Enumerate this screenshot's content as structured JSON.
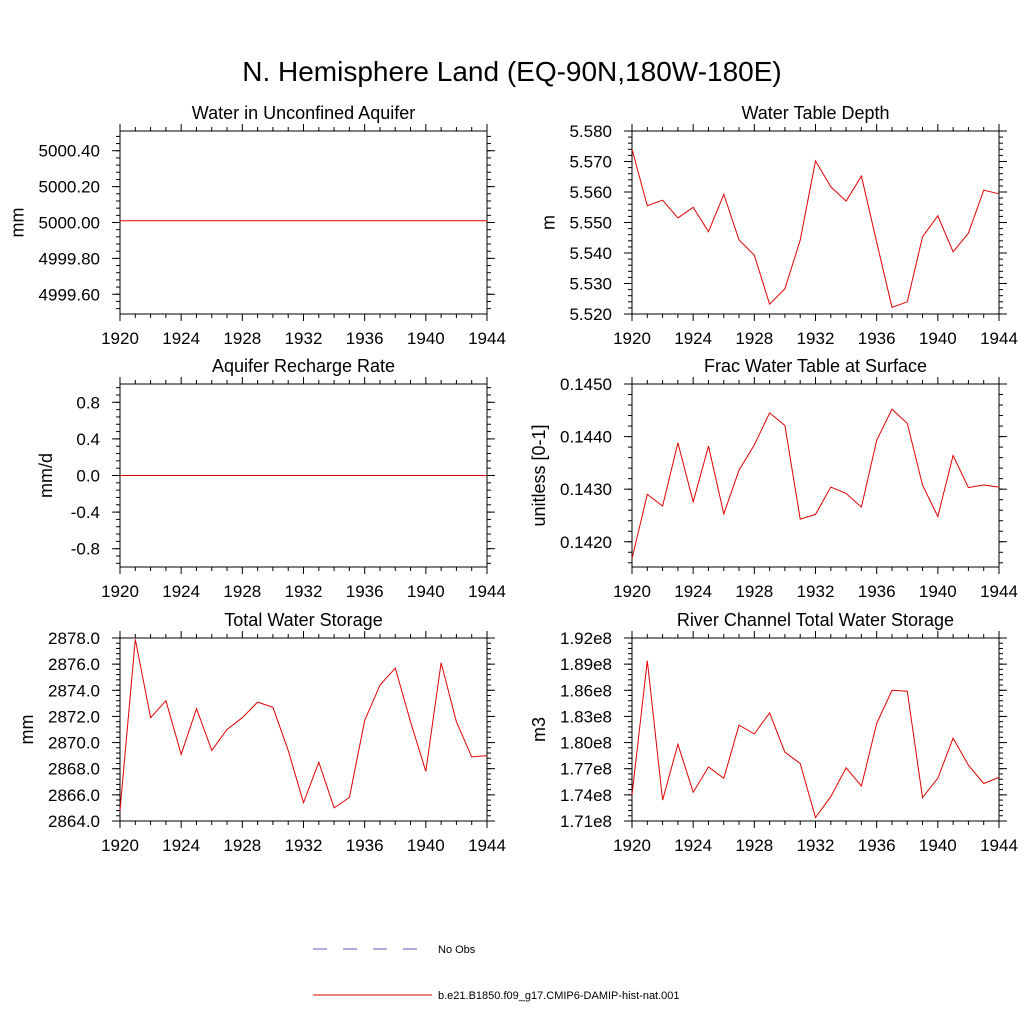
{
  "title": "N. Hemisphere Land (EQ-90N,180W-180E)",
  "legend": {
    "items": [
      {
        "label": "No Obs",
        "color": "#5a5ab4",
        "dash": true
      },
      {
        "label": "b.e21.B1850.f09_g17.CMIP6-DAMIP-hist-nat.001",
        "color": "#e00000",
        "dash": false
      }
    ]
  },
  "chart_data": [
    {
      "type": "line",
      "title": "Water in Unconfined Aquifer",
      "ylabel": "mm",
      "xlim": [
        1920,
        1944
      ],
      "ylim": [
        4999.49,
        5000.51
      ],
      "xticks": [
        "1920",
        "1924",
        "1928",
        "1932",
        "1936",
        "1940",
        "1944"
      ],
      "yticks": [
        {
          "v": 5000.4,
          "t": "5000.40"
        },
        {
          "v": 5000.2,
          "t": "5000.20"
        },
        {
          "v": 5000.0,
          "t": "5000.00"
        },
        {
          "v": 4999.8,
          "t": "4999.80"
        },
        {
          "v": 4999.6,
          "t": "4999.60"
        }
      ],
      "x": [
        1920,
        1921,
        1922,
        1923,
        1924,
        1925,
        1926,
        1927,
        1928,
        1929,
        1930,
        1931,
        1932,
        1933,
        1934,
        1935,
        1936,
        1937,
        1938,
        1939,
        1940,
        1941,
        1942,
        1943,
        1944
      ],
      "series": [
        {
          "values": [
            5000.01,
            5000.01,
            5000.01,
            5000.01,
            5000.01,
            5000.01,
            5000.01,
            5000.01,
            5000.01,
            5000.01,
            5000.01,
            5000.01,
            5000.01,
            5000.01,
            5000.01,
            5000.01,
            5000.01,
            5000.01,
            5000.01,
            5000.01,
            5000.01,
            5000.01,
            5000.01,
            5000.01,
            5000.01
          ],
          "color": "#e00000"
        }
      ]
    },
    {
      "type": "line",
      "title": "Water Table Depth",
      "ylabel": "m",
      "xlim": [
        1920,
        1944
      ],
      "ylim": [
        5.52,
        5.58
      ],
      "xticks": [
        "1920",
        "1924",
        "1928",
        "1932",
        "1936",
        "1940",
        "1944"
      ],
      "yticks": [
        {
          "v": 5.58,
          "t": "5.580"
        },
        {
          "v": 5.57,
          "t": "5.570"
        },
        {
          "v": 5.56,
          "t": "5.560"
        },
        {
          "v": 5.55,
          "t": "5.550"
        },
        {
          "v": 5.54,
          "t": "5.540"
        },
        {
          "v": 5.53,
          "t": "5.530"
        },
        {
          "v": 5.52,
          "t": "5.520"
        }
      ],
      "x": [
        1920,
        1921,
        1922,
        1923,
        1924,
        1925,
        1926,
        1927,
        1928,
        1929,
        1930,
        1931,
        1932,
        1933,
        1934,
        1935,
        1936,
        1937,
        1938,
        1939,
        1940,
        1941,
        1942,
        1943,
        1944
      ],
      "series": [
        {
          "values": [
            5.574,
            5.5555,
            5.5573,
            5.5515,
            5.555,
            5.547,
            5.5592,
            5.5443,
            5.5393,
            5.5232,
            5.5283,
            5.5442,
            5.5702,
            5.5617,
            5.557,
            5.5652,
            5.5435,
            5.5222,
            5.524,
            5.5453,
            5.5522,
            5.5404,
            5.5465,
            5.5606,
            5.5594
          ],
          "color": "#e00000"
        }
      ]
    },
    {
      "type": "line",
      "title": "Aquifer Recharge Rate",
      "ylabel": "mm/d",
      "xlim": [
        1920,
        1944
      ],
      "ylim": [
        -1.0,
        1.0
      ],
      "xticks": [
        "1920",
        "1924",
        "1928",
        "1932",
        "1936",
        "1940",
        "1944"
      ],
      "yticks": [
        {
          "v": 0.8,
          "t": "0.8"
        },
        {
          "v": 0.4,
          "t": "0.4"
        },
        {
          "v": 0.0,
          "t": "0.0"
        },
        {
          "v": -0.4,
          "t": "-0.4"
        },
        {
          "v": -0.8,
          "t": "-0.8"
        }
      ],
      "x": [
        1920,
        1921,
        1922,
        1923,
        1924,
        1925,
        1926,
        1927,
        1928,
        1929,
        1930,
        1931,
        1932,
        1933,
        1934,
        1935,
        1936,
        1937,
        1938,
        1939,
        1940,
        1941,
        1942,
        1943,
        1944
      ],
      "series": [
        {
          "values": [
            0,
            0,
            0,
            0,
            0,
            0,
            0,
            0,
            0,
            0,
            0,
            0,
            0,
            0,
            0,
            0,
            0,
            0,
            0,
            0,
            0,
            0,
            0,
            0,
            0
          ],
          "color": "#e00000"
        }
      ]
    },
    {
      "type": "line",
      "title": "Frac Water Table at Surface",
      "ylabel": "unitless [0-1]",
      "xlim": [
        1920,
        1944
      ],
      "ylim": [
        0.14152,
        0.145
      ],
      "xticks": [
        "1920",
        "1924",
        "1928",
        "1932",
        "1936",
        "1940",
        "1944"
      ],
      "yticks": [
        {
          "v": 0.145,
          "t": "0.1450"
        },
        {
          "v": 0.144,
          "t": "0.1440"
        },
        {
          "v": 0.143,
          "t": "0.1430"
        },
        {
          "v": 0.142,
          "t": "0.1420"
        }
      ],
      "x": [
        1920,
        1921,
        1922,
        1923,
        1924,
        1925,
        1926,
        1927,
        1928,
        1929,
        1930,
        1931,
        1932,
        1933,
        1934,
        1935,
        1936,
        1937,
        1938,
        1939,
        1940,
        1941,
        1942,
        1943,
        1944
      ],
      "series": [
        {
          "values": [
            0.14168,
            0.1429,
            0.14268,
            0.14388,
            0.14276,
            0.14382,
            0.14253,
            0.14336,
            0.14384,
            0.14445,
            0.14421,
            0.14243,
            0.14252,
            0.14304,
            0.14292,
            0.14266,
            0.14393,
            0.14452,
            0.14425,
            0.14308,
            0.14248,
            0.14364,
            0.14303,
            0.14308,
            0.14304
          ],
          "color": "#e00000"
        }
      ]
    },
    {
      "type": "line",
      "title": "Total Water Storage",
      "ylabel": "mm",
      "xlim": [
        1920,
        1944
      ],
      "ylim": [
        2864.0,
        2878.0
      ],
      "xticks": [
        "1920",
        "1924",
        "1928",
        "1932",
        "1936",
        "1940",
        "1944"
      ],
      "yticks": [
        {
          "v": 2878.0,
          "t": "2878.0"
        },
        {
          "v": 2876.0,
          "t": "2876.0"
        },
        {
          "v": 2874.0,
          "t": "2874.0"
        },
        {
          "v": 2872.0,
          "t": "2872.0"
        },
        {
          "v": 2870.0,
          "t": "2870.0"
        },
        {
          "v": 2868.0,
          "t": "2868.0"
        },
        {
          "v": 2866.0,
          "t": "2866.0"
        },
        {
          "v": 2864.0,
          "t": "2864.0"
        }
      ],
      "x": [
        1920,
        1921,
        1922,
        1923,
        1924,
        1925,
        1926,
        1927,
        1928,
        1929,
        1930,
        1931,
        1932,
        1933,
        1934,
        1935,
        1936,
        1937,
        1938,
        1939,
        1940,
        1941,
        1942,
        1943,
        1944
      ],
      "series": [
        {
          "values": [
            2864.8,
            2877.9,
            2871.9,
            2873.2,
            2869.1,
            2872.6,
            2869.4,
            2871.0,
            2871.9,
            2873.1,
            2872.7,
            2869.4,
            2865.4,
            2868.5,
            2865.0,
            2865.8,
            2871.7,
            2874.4,
            2875.7,
            2871.6,
            2867.8,
            2876.1,
            2871.6,
            2868.9,
            2869.0
          ],
          "color": "#e00000"
        }
      ]
    },
    {
      "type": "line",
      "title": "River Channel Total Water Storage",
      "ylabel": "m3",
      "xlim": [
        1920,
        1944
      ],
      "ylim": [
        171000000.0,
        192000000.0
      ],
      "xticks": [
        "1920",
        "1924",
        "1928",
        "1932",
        "1936",
        "1940",
        "1944"
      ],
      "yticks": [
        {
          "v": 192000000.0,
          "t": "1.92e8"
        },
        {
          "v": 189000000.0,
          "t": "1.89e8"
        },
        {
          "v": 186000000.0,
          "t": "1.86e8"
        },
        {
          "v": 183000000.0,
          "t": "1.83e8"
        },
        {
          "v": 180000000.0,
          "t": "1.80e8"
        },
        {
          "v": 177000000.0,
          "t": "1.77e8"
        },
        {
          "v": 174000000.0,
          "t": "1.74e8"
        },
        {
          "v": 171000000.0,
          "t": "1.71e8"
        }
      ],
      "x": [
        1920,
        1921,
        1922,
        1923,
        1924,
        1925,
        1926,
        1927,
        1928,
        1929,
        1930,
        1931,
        1932,
        1933,
        1934,
        1935,
        1936,
        1937,
        1938,
        1939,
        1940,
        1941,
        1942,
        1943,
        1944
      ],
      "series": [
        {
          "values": [
            174000000.0,
            189400000.0,
            173400000.0,
            179800000.0,
            174300000.0,
            177200000.0,
            175900000.0,
            182000000.0,
            181000000.0,
            183400000.0,
            178900000.0,
            177600000.0,
            171400000.0,
            173800000.0,
            177100000.0,
            175000000.0,
            182200000.0,
            186000000.0,
            185900000.0,
            173700000.0,
            175900000.0,
            180500000.0,
            177400000.0,
            175300000.0,
            176000000.0
          ],
          "color": "#e00000"
        }
      ]
    }
  ]
}
